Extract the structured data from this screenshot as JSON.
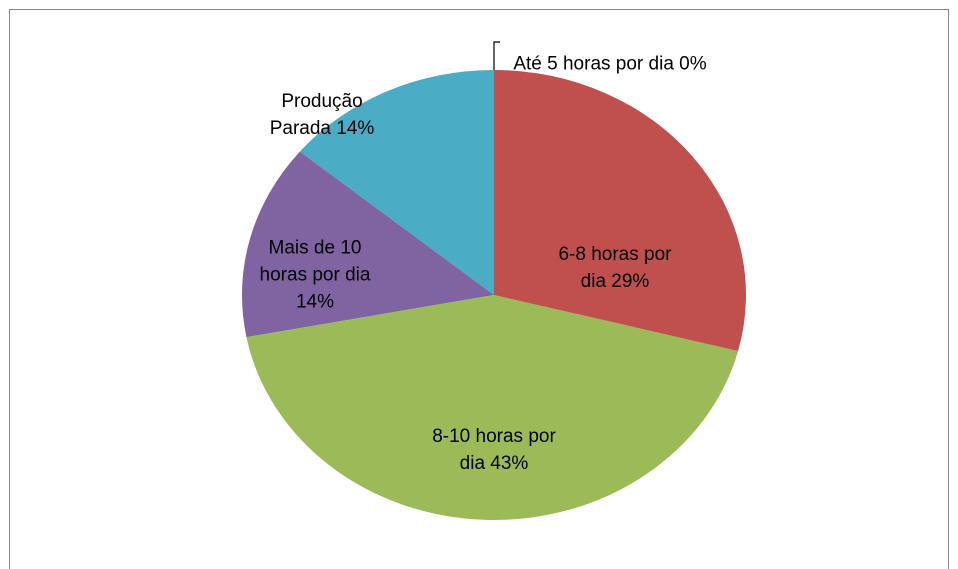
{
  "chart_data": {
    "type": "pie",
    "categories": [
      "Até 5 horas por dia",
      "6-8 horas por dia",
      "8-10 horas por dia",
      "Mais de 10 horas por dia",
      "Produção Parada"
    ],
    "values": [
      0,
      29,
      43,
      14,
      14
    ],
    "value_labels": [
      "0%",
      "29%",
      "43%",
      "14%",
      "14%"
    ],
    "colors": [
      "#4f81bd",
      "#c0504d",
      "#9bbb59",
      "#8064a2",
      "#4bacc6"
    ]
  }
}
